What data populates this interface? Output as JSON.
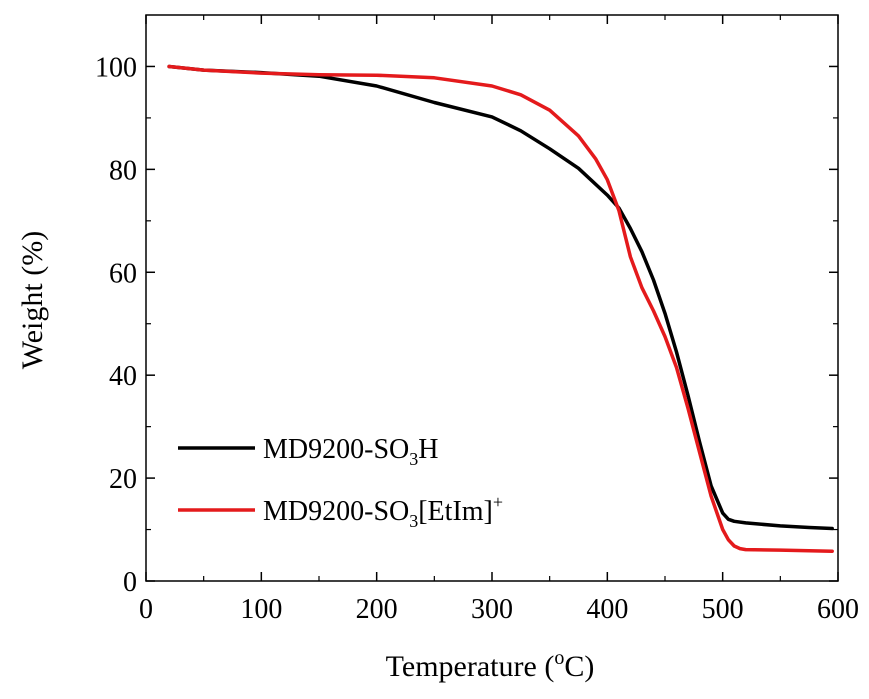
{
  "chart_data": {
    "type": "line",
    "xlabel": "Temperature (oC)",
    "xlabel_parts": {
      "before": "Temperature (",
      "sup": "o",
      "after": "C)"
    },
    "ylabel": "Weight (%)",
    "xlim": [
      0,
      600
    ],
    "ylim": [
      0,
      110
    ],
    "xticks": [
      0,
      100,
      200,
      300,
      400,
      500,
      600
    ],
    "yticks": [
      0,
      20,
      40,
      60,
      80,
      100
    ],
    "grid": false,
    "legend_position": "bottom-left",
    "series": [
      {
        "name": "MD9200-SO3H",
        "name_parts": {
          "base": "MD9200-SO",
          "sub": "3",
          "suffix": "H",
          "sup": ""
        },
        "color": "#000000",
        "x": [
          20,
          50,
          100,
          150,
          200,
          250,
          300,
          325,
          350,
          375,
          400,
          410,
          420,
          430,
          440,
          450,
          460,
          470,
          480,
          490,
          500,
          505,
          510,
          520,
          550,
          575,
          595
        ],
        "y": [
          100,
          99.3,
          98.8,
          98.1,
          96.2,
          93.0,
          90.2,
          87.5,
          84.0,
          80.2,
          75.0,
          72.5,
          68.5,
          64.0,
          58.5,
          52.0,
          44.5,
          36.0,
          27.0,
          18.5,
          13.2,
          12.0,
          11.6,
          11.3,
          10.7,
          10.4,
          10.2
        ]
      },
      {
        "name": "MD9200-SO3[EtIm]+",
        "name_parts": {
          "base": "MD9200-SO",
          "sub": "3",
          "suffix": "[EtIm]",
          "sup": "+"
        },
        "color": "#e41a1c",
        "x": [
          20,
          50,
          100,
          150,
          200,
          250,
          300,
          325,
          350,
          375,
          390,
          400,
          410,
          420,
          430,
          440,
          450,
          460,
          470,
          480,
          490,
          500,
          505,
          510,
          515,
          520,
          550,
          595
        ],
        "y": [
          100,
          99.3,
          98.7,
          98.4,
          98.3,
          97.8,
          96.2,
          94.5,
          91.5,
          86.5,
          82.0,
          78.0,
          72.0,
          63.0,
          57.0,
          52.5,
          47.5,
          41.5,
          33.5,
          25.0,
          16.5,
          10.0,
          8.0,
          6.8,
          6.3,
          6.1,
          6.0,
          5.8
        ]
      }
    ]
  }
}
